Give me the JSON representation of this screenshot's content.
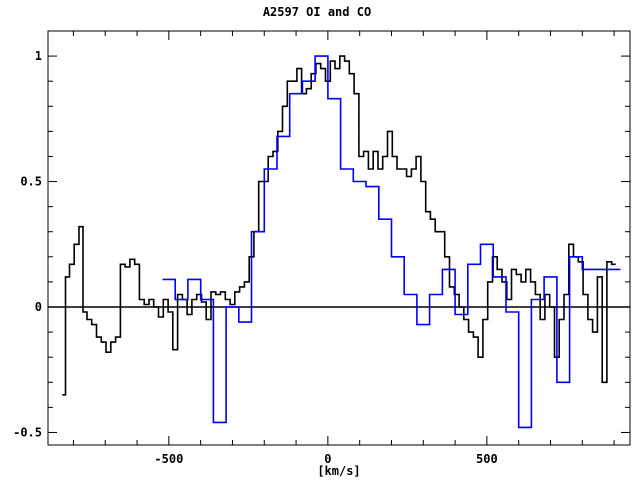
{
  "chart_data": {
    "type": "line",
    "title": "A2597 OI and CO",
    "xlabel": "[km/s]",
    "ylabel": "",
    "xlim": [
      -880,
      950
    ],
    "ylim": [
      -0.55,
      1.1
    ],
    "xticks": [
      -500,
      0,
      500
    ],
    "xtick_labels": [
      "-500",
      "0",
      "500"
    ],
    "yticks": [
      -0.5,
      0,
      0.5,
      1
    ],
    "ytick_labels": [
      "-0.5",
      "0",
      "0.5",
      "1"
    ],
    "style": "steps",
    "grid": false,
    "series": [
      {
        "color": "#000000",
        "x": [
          -830,
          -820,
          -805,
          -790,
          -775,
          -765,
          -750,
          -735,
          -720,
          -705,
          -690,
          -675,
          -660,
          -645,
          -630,
          -615,
          -600,
          -585,
          -570,
          -555,
          -540,
          -525,
          -510,
          -495,
          -480,
          -465,
          -450,
          -435,
          -420,
          -405,
          -390,
          -375,
          -360,
          -345,
          -330,
          -315,
          -300,
          -285,
          -270,
          -255,
          -240,
          -225,
          -210,
          -195,
          -180,
          -165,
          -150,
          -135,
          -120,
          -105,
          -90,
          -75,
          -60,
          -45,
          -30,
          -15,
          0,
          15,
          30,
          45,
          60,
          75,
          90,
          105,
          120,
          135,
          150,
          165,
          180,
          195,
          210,
          225,
          240,
          255,
          270,
          285,
          300,
          315,
          330,
          345,
          360,
          375,
          390,
          405,
          420,
          435,
          450,
          465,
          480,
          495,
          510,
          525,
          540,
          555,
          570,
          585,
          600,
          615,
          630,
          645,
          660,
          675,
          690,
          705,
          720,
          735,
          750,
          765,
          780,
          795,
          810,
          825,
          840,
          855,
          870,
          885,
          900
        ],
        "values": [
          -0.35,
          0.12,
          0.17,
          0.25,
          0.32,
          -0.02,
          -0.05,
          -0.07,
          -0.12,
          -0.14,
          -0.18,
          -0.14,
          -0.12,
          0.17,
          0.16,
          0.19,
          0.17,
          0.03,
          0.01,
          0.03,
          0.0,
          -0.04,
          0.03,
          -0.02,
          -0.17,
          0.05,
          0.03,
          -0.03,
          0.03,
          0.05,
          0.02,
          -0.05,
          0.06,
          0.05,
          0.06,
          0.03,
          0.01,
          0.06,
          0.08,
          0.1,
          0.2,
          0.3,
          0.5,
          0.5,
          0.6,
          0.62,
          0.7,
          0.8,
          0.9,
          0.9,
          0.95,
          0.85,
          0.87,
          0.93,
          0.97,
          0.95,
          0.9,
          0.98,
          0.95,
          1.0,
          0.98,
          0.93,
          0.85,
          0.6,
          0.62,
          0.55,
          0.62,
          0.55,
          0.6,
          0.7,
          0.6,
          0.55,
          0.55,
          0.52,
          0.55,
          0.6,
          0.5,
          0.38,
          0.35,
          0.3,
          0.3,
          0.2,
          0.08,
          0.05,
          0.0,
          -0.05,
          -0.1,
          -0.12,
          -0.2,
          -0.05,
          0.1,
          0.2,
          0.15,
          0.1,
          0.03,
          0.15,
          0.13,
          0.1,
          0.15,
          0.1,
          0.05,
          -0.05,
          0.05,
          0.0,
          -0.2,
          -0.05,
          0.05,
          0.25,
          0.2,
          0.18,
          0.05,
          -0.05,
          -0.1,
          0.12,
          -0.3,
          0.18,
          0.17
        ]
      },
      {
        "color": "#0000ff",
        "x": [
          -500,
          -460,
          -420,
          -380,
          -340,
          -300,
          -260,
          -220,
          -180,
          -140,
          -100,
          -60,
          -20,
          20,
          60,
          100,
          140,
          180,
          220,
          260,
          300,
          340,
          380,
          420,
          460,
          500,
          540,
          580,
          620,
          660,
          700,
          740,
          780,
          820,
          860,
          900
        ],
        "values": [
          0.11,
          0.03,
          0.11,
          0.03,
          -0.46,
          0.0,
          -0.06,
          0.3,
          0.55,
          0.68,
          0.85,
          0.9,
          1.0,
          0.83,
          0.55,
          0.5,
          0.48,
          0.35,
          0.2,
          0.05,
          -0.07,
          0.05,
          0.15,
          -0.03,
          0.17,
          0.25,
          0.12,
          -0.02,
          -0.48,
          0.03,
          0.12,
          -0.3,
          0.2,
          0.15,
          0.15,
          0.15
        ]
      }
    ],
    "reference_line": {
      "y": 0,
      "color": "#000000"
    }
  }
}
